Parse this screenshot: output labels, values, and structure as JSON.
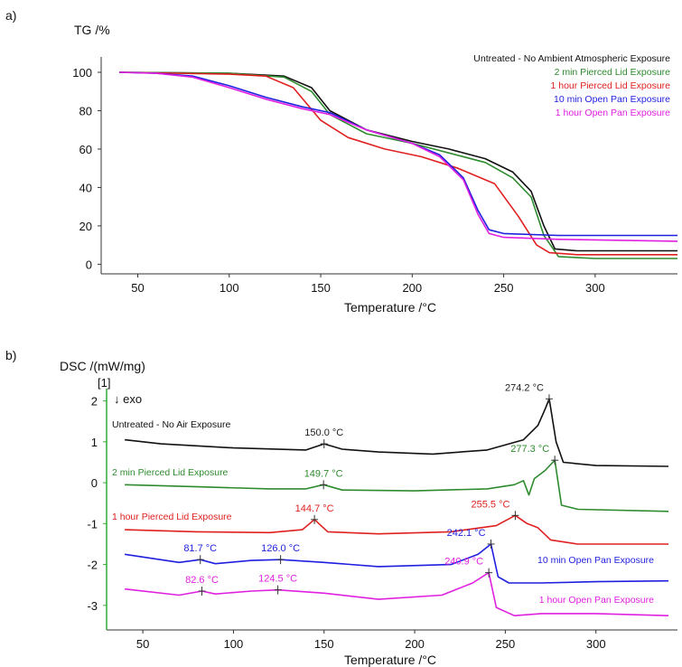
{
  "chart_data": [
    {
      "type": "line",
      "panel_label": "a)",
      "ylabel": "TG /%",
      "xlabel": "Temperature /°C",
      "xlim": [
        30,
        345
      ],
      "ylim": [
        -5,
        108
      ],
      "x_ticks": [
        50,
        100,
        150,
        200,
        250,
        300
      ],
      "y_ticks": [
        0,
        20,
        40,
        60,
        80,
        100
      ],
      "legend_position": "top-right",
      "series": [
        {
          "name": "Untreated - No Ambient Atmospheric Exposure",
          "color": "#111111",
          "x": [
            40,
            100,
            130,
            145,
            155,
            175,
            200,
            220,
            240,
            255,
            265,
            272,
            278,
            290,
            345
          ],
          "y": [
            100,
            99.5,
            98,
            92,
            80,
            70,
            64,
            60,
            55,
            48,
            38,
            20,
            8,
            7,
            7
          ]
        },
        {
          "name": "2 min Pierced Lid Exposure",
          "color": "#2e8b2e",
          "x": [
            40,
            100,
            130,
            145,
            155,
            175,
            200,
            220,
            240,
            255,
            265,
            272,
            280,
            300,
            345
          ],
          "y": [
            100,
            99.5,
            97.5,
            90,
            78,
            68,
            63,
            58,
            53,
            45,
            35,
            15,
            4,
            3,
            3
          ]
        },
        {
          "name": "1 hour Pierced Lid Exposure",
          "color": "#e02020",
          "x": [
            40,
            100,
            120,
            135,
            150,
            165,
            185,
            205,
            225,
            245,
            258,
            268,
            275,
            290,
            345
          ],
          "y": [
            100,
            99,
            98,
            92,
            75,
            66,
            60,
            56,
            50,
            42,
            25,
            10,
            6,
            5,
            5
          ]
        },
        {
          "name": "10 min Open Pan Exposure",
          "color": "#1f1fe0",
          "x": [
            40,
            60,
            80,
            100,
            120,
            140,
            155,
            175,
            200,
            215,
            228,
            236,
            242,
            250,
            280,
            345
          ],
          "y": [
            100,
            99.5,
            98,
            93,
            87,
            82,
            79,
            70,
            63,
            57,
            45,
            28,
            18,
            16,
            15,
            15
          ]
        },
        {
          "name": "1 hour Open Pan Exposure",
          "color": "#e020e0",
          "x": [
            40,
            60,
            80,
            100,
            120,
            140,
            155,
            175,
            200,
            215,
            228,
            236,
            242,
            250,
            280,
            345
          ],
          "y": [
            100,
            99.5,
            97.5,
            92,
            86,
            81,
            78,
            70,
            63,
            56,
            44,
            26,
            16,
            14,
            13,
            12
          ]
        }
      ]
    },
    {
      "type": "line",
      "panel_label": "b)",
      "ylabel": "DSC /(mW/mg)",
      "ylabel_sub": "[1]",
      "exo_label": "↓ exo",
      "xlabel": "Temperature /°C",
      "xlim": [
        30,
        345
      ],
      "ylim": [
        -3.6,
        2.3
      ],
      "x_ticks": [
        50,
        100,
        150,
        200,
        250,
        300
      ],
      "y_ticks": [
        -3,
        -2,
        -1,
        0,
        1,
        2
      ],
      "series": [
        {
          "name": "Untreated - No Air Exposure",
          "color": "#111111",
          "x": [
            40,
            60,
            100,
            140,
            150,
            160,
            180,
            210,
            240,
            260,
            268,
            272,
            274.2,
            278,
            282,
            300,
            340
          ],
          "y": [
            1.05,
            0.95,
            0.85,
            0.8,
            0.95,
            0.82,
            0.75,
            0.7,
            0.8,
            1.05,
            1.4,
            1.8,
            2.05,
            1.0,
            0.5,
            0.42,
            0.4
          ],
          "peaks": [
            {
              "x": 150.0,
              "y": 0.95,
              "label": "150.0 °C"
            },
            {
              "x": 274.2,
              "y": 2.05,
              "label": "274.2 °C"
            }
          ]
        },
        {
          "name": "2 min Pierced Lid Exposure",
          "color": "#2e8b2e",
          "x": [
            40,
            80,
            120,
            140,
            149.7,
            160,
            200,
            240,
            255,
            260,
            263,
            266,
            272,
            277.3,
            281,
            290,
            340
          ],
          "y": [
            -0.05,
            -0.1,
            -0.15,
            -0.15,
            -0.05,
            -0.18,
            -0.2,
            -0.15,
            -0.05,
            0.05,
            -0.3,
            0.1,
            0.3,
            0.55,
            -0.55,
            -0.65,
            -0.7
          ],
          "peaks": [
            {
              "x": 149.7,
              "y": -0.05,
              "label": "149.7 °C"
            },
            {
              "x": 277.3,
              "y": 0.55,
              "label": "277.3 °C"
            }
          ]
        },
        {
          "name": "1 hour Pierced Lid Exposure",
          "color": "#e02020",
          "x": [
            40,
            80,
            120,
            138,
            144.7,
            152,
            180,
            220,
            245,
            255.5,
            262,
            268,
            275,
            290,
            340
          ],
          "y": [
            -1.15,
            -1.2,
            -1.22,
            -1.15,
            -0.9,
            -1.2,
            -1.25,
            -1.2,
            -1.05,
            -0.8,
            -1.0,
            -1.1,
            -1.4,
            -1.5,
            -1.5
          ],
          "peaks": [
            {
              "x": 144.7,
              "y": -0.9,
              "label": "144.7 °C"
            },
            {
              "x": 255.5,
              "y": -0.8,
              "label": "255.5 °C"
            }
          ]
        },
        {
          "name": "10 min Open Pan Exposure",
          "color": "#1f1fe0",
          "x": [
            40,
            70,
            81.7,
            90,
            110,
            126.0,
            150,
            180,
            220,
            235,
            242.1,
            246,
            252,
            270,
            300,
            340
          ],
          "y": [
            -1.75,
            -1.95,
            -1.88,
            -1.98,
            -1.9,
            -1.88,
            -1.95,
            -2.05,
            -2.0,
            -1.75,
            -1.5,
            -2.3,
            -2.45,
            -2.45,
            -2.42,
            -2.4
          ],
          "peaks": [
            {
              "x": 81.7,
              "y": -1.88,
              "label": "81.7 °C"
            },
            {
              "x": 126.0,
              "y": -1.88,
              "label": "126.0 °C"
            },
            {
              "x": 242.1,
              "y": -1.5,
              "label": "242.1 °C"
            }
          ]
        },
        {
          "name": "1 hour Open Pan Exposure",
          "color": "#e020e0",
          "x": [
            40,
            70,
            82.6,
            90,
            110,
            124.5,
            150,
            180,
            215,
            232,
            240.9,
            245,
            255,
            270,
            300,
            340
          ],
          "y": [
            -2.6,
            -2.75,
            -2.65,
            -2.72,
            -2.65,
            -2.62,
            -2.7,
            -2.85,
            -2.75,
            -2.45,
            -2.2,
            -3.05,
            -3.25,
            -3.2,
            -3.2,
            -3.25
          ],
          "peaks": [
            {
              "x": 82.6,
              "y": -2.65,
              "label": "82.6 °C"
            },
            {
              "x": 124.5,
              "y": -2.62,
              "label": "124.5 °C"
            },
            {
              "x": 240.9,
              "y": -2.2,
              "label": "240.9 °C"
            }
          ]
        }
      ]
    }
  ]
}
